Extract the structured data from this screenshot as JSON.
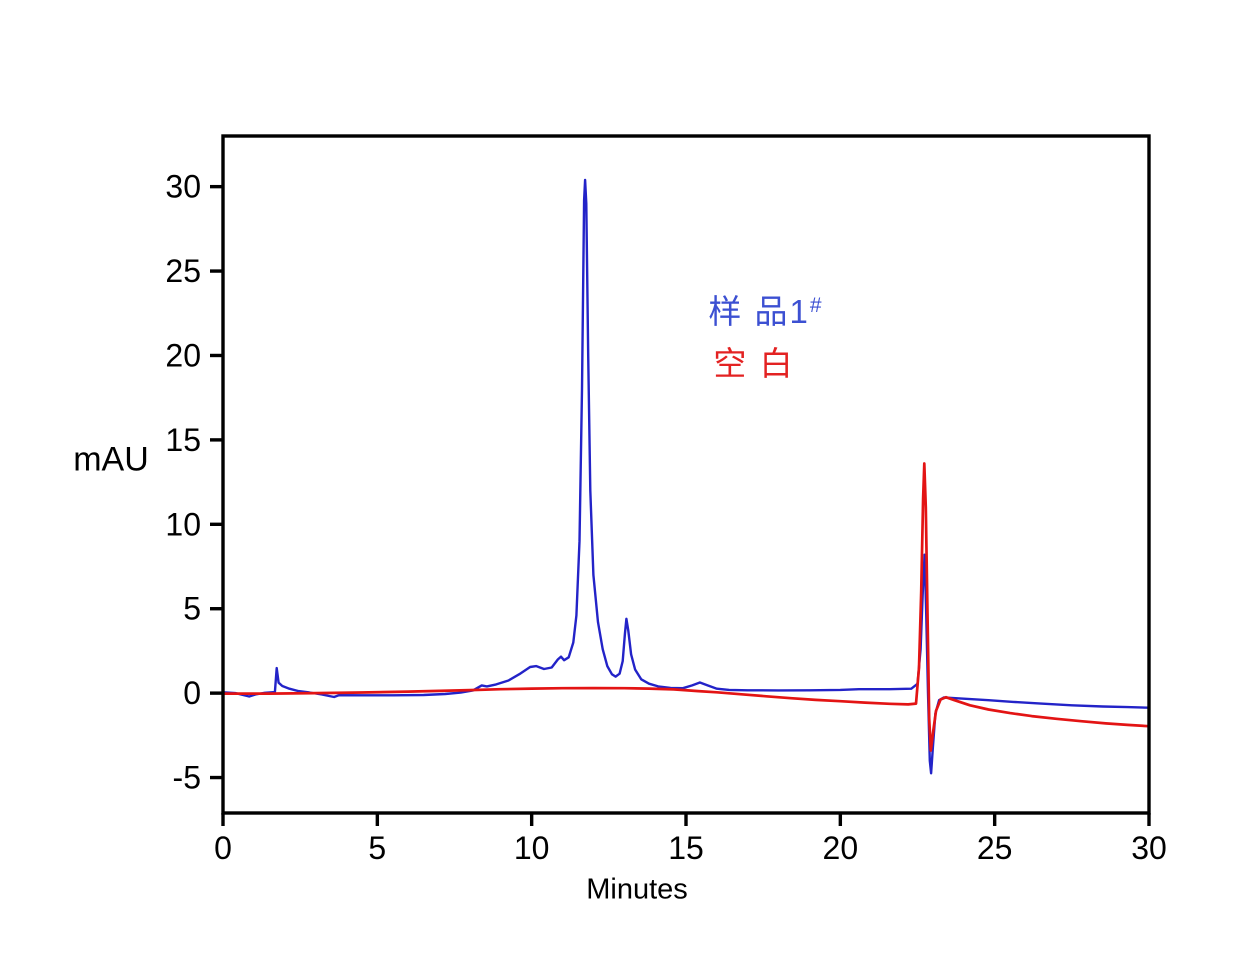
{
  "chart_data": {
    "type": "line",
    "xlabel": "Minutes",
    "ylabel": "mAU",
    "xlim": [
      0,
      30
    ],
    "ylim": [
      -7.1,
      33.0
    ],
    "x_ticks": [
      0,
      5,
      10,
      15,
      20,
      25,
      30
    ],
    "y_ticks": [
      -5,
      0,
      5,
      10,
      15,
      20,
      25,
      30
    ],
    "grid": false,
    "background": "#ffffff",
    "axis_color": "#000000",
    "legend_position": "inside upper-right area, stacked text labels",
    "annotations": [
      {
        "text": "样 品1",
        "sup": "#",
        "color": "#3c50d2"
      },
      {
        "text": "空 白",
        "sup": "",
        "color": "#e32222"
      }
    ],
    "series": [
      {
        "name": "样 品1#",
        "color": "#2323c8",
        "points": [
          [
            0,
            0.05
          ],
          [
            0.4,
            0
          ],
          [
            0.85,
            -0.2
          ],
          [
            1.05,
            -0.08
          ],
          [
            1.35,
            0.02
          ],
          [
            1.68,
            0.06
          ],
          [
            1.74,
            1.48
          ],
          [
            1.8,
            0.62
          ],
          [
            1.92,
            0.42
          ],
          [
            2.15,
            0.26
          ],
          [
            2.45,
            0.12
          ],
          [
            2.8,
            0.04
          ],
          [
            3.2,
            -0.08
          ],
          [
            3.6,
            -0.23
          ],
          [
            3.75,
            -0.12
          ],
          [
            4.5,
            -0.13
          ],
          [
            5.5,
            -0.13
          ],
          [
            6.5,
            -0.11
          ],
          [
            7.2,
            -0.05
          ],
          [
            7.7,
            0.03
          ],
          [
            8.1,
            0.16
          ],
          [
            8.38,
            0.46
          ],
          [
            8.55,
            0.4
          ],
          [
            8.85,
            0.52
          ],
          [
            9.25,
            0.75
          ],
          [
            9.6,
            1.12
          ],
          [
            9.95,
            1.55
          ],
          [
            10.15,
            1.6
          ],
          [
            10.4,
            1.43
          ],
          [
            10.65,
            1.52
          ],
          [
            10.85,
            2.0
          ],
          [
            10.95,
            2.16
          ],
          [
            11.05,
            1.95
          ],
          [
            11.2,
            2.12
          ],
          [
            11.35,
            3.0
          ],
          [
            11.45,
            4.6
          ],
          [
            11.55,
            9.0
          ],
          [
            11.63,
            18.0
          ],
          [
            11.7,
            29.2
          ],
          [
            11.73,
            30.4
          ],
          [
            11.77,
            29.0
          ],
          [
            11.83,
            20.0
          ],
          [
            11.9,
            12.0
          ],
          [
            12.0,
            7.0
          ],
          [
            12.15,
            4.2
          ],
          [
            12.3,
            2.6
          ],
          [
            12.45,
            1.6
          ],
          [
            12.6,
            1.12
          ],
          [
            12.72,
            0.98
          ],
          [
            12.85,
            1.15
          ],
          [
            12.95,
            1.9
          ],
          [
            13.02,
            3.5
          ],
          [
            13.07,
            4.4
          ],
          [
            13.13,
            3.7
          ],
          [
            13.22,
            2.3
          ],
          [
            13.35,
            1.4
          ],
          [
            13.55,
            0.82
          ],
          [
            13.8,
            0.56
          ],
          [
            14.1,
            0.4
          ],
          [
            14.5,
            0.31
          ],
          [
            14.9,
            0.29
          ],
          [
            15.2,
            0.46
          ],
          [
            15.45,
            0.63
          ],
          [
            15.7,
            0.46
          ],
          [
            16.0,
            0.26
          ],
          [
            16.4,
            0.19
          ],
          [
            17.0,
            0.17
          ],
          [
            18.0,
            0.16
          ],
          [
            19.0,
            0.17
          ],
          [
            20.0,
            0.19
          ],
          [
            20.6,
            0.23
          ],
          [
            21.6,
            0.23
          ],
          [
            22.3,
            0.26
          ],
          [
            22.5,
            0.55
          ],
          [
            22.6,
            2.6
          ],
          [
            22.68,
            6.5
          ],
          [
            22.73,
            8.2
          ],
          [
            22.78,
            5.0
          ],
          [
            22.84,
            0.0
          ],
          [
            22.9,
            -4.0
          ],
          [
            22.94,
            -4.75
          ],
          [
            23.0,
            -3.2
          ],
          [
            23.08,
            -1.2
          ],
          [
            23.2,
            -0.42
          ],
          [
            23.35,
            -0.26
          ],
          [
            23.6,
            -0.28
          ],
          [
            24.0,
            -0.33
          ],
          [
            24.8,
            -0.42
          ],
          [
            25.6,
            -0.52
          ],
          [
            26.5,
            -0.62
          ],
          [
            27.5,
            -0.72
          ],
          [
            28.5,
            -0.79
          ],
          [
            29.3,
            -0.83
          ],
          [
            30,
            -0.86
          ]
        ]
      },
      {
        "name": "空 白",
        "color": "#e31414",
        "points": [
          [
            0,
            -0.03
          ],
          [
            1.5,
            -0.03
          ],
          [
            3.0,
            0.0
          ],
          [
            4.5,
            0.04
          ],
          [
            6.0,
            0.09
          ],
          [
            7.0,
            0.13
          ],
          [
            8.0,
            0.18
          ],
          [
            9.0,
            0.23
          ],
          [
            10.0,
            0.27
          ],
          [
            11.0,
            0.29
          ],
          [
            12.0,
            0.3
          ],
          [
            13.0,
            0.29
          ],
          [
            13.8,
            0.27
          ],
          [
            14.6,
            0.22
          ],
          [
            15.4,
            0.12
          ],
          [
            16.0,
            0.05
          ],
          [
            16.8,
            -0.07
          ],
          [
            17.6,
            -0.19
          ],
          [
            18.4,
            -0.3
          ],
          [
            19.2,
            -0.4
          ],
          [
            20.0,
            -0.48
          ],
          [
            20.8,
            -0.56
          ],
          [
            21.6,
            -0.63
          ],
          [
            22.2,
            -0.67
          ],
          [
            22.45,
            -0.62
          ],
          [
            22.55,
            1.5
          ],
          [
            22.62,
            6.0
          ],
          [
            22.68,
            11.5
          ],
          [
            22.72,
            13.6
          ],
          [
            22.77,
            11.0
          ],
          [
            22.83,
            4.0
          ],
          [
            22.88,
            -1.5
          ],
          [
            22.93,
            -3.4
          ],
          [
            23.0,
            -2.4
          ],
          [
            23.1,
            -1.05
          ],
          [
            23.25,
            -0.38
          ],
          [
            23.42,
            -0.24
          ],
          [
            23.7,
            -0.42
          ],
          [
            24.2,
            -0.72
          ],
          [
            24.8,
            -0.97
          ],
          [
            25.5,
            -1.18
          ],
          [
            26.2,
            -1.36
          ],
          [
            27.0,
            -1.52
          ],
          [
            27.8,
            -1.66
          ],
          [
            28.6,
            -1.79
          ],
          [
            29.3,
            -1.88
          ],
          [
            30,
            -1.96
          ]
        ]
      }
    ]
  }
}
